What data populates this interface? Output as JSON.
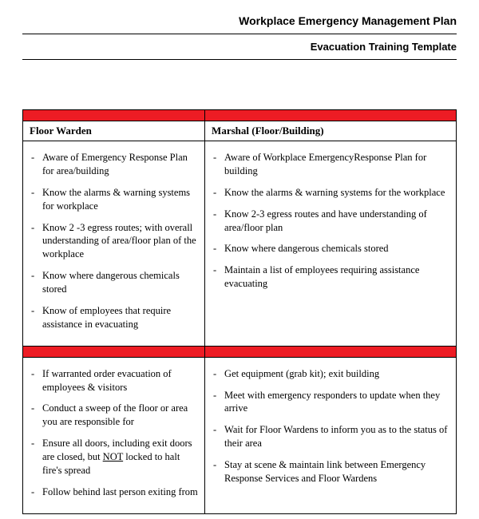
{
  "header": {
    "main_title": "Workplace Emergency Management Plan",
    "sub_title": "Evacuation Training Template"
  },
  "table": {
    "colors": {
      "band": "#ed1c24",
      "border": "#000000",
      "background": "#ffffff",
      "text": "#000000"
    },
    "columns": {
      "left_header": "Floor Warden",
      "right_header": "Marshal (Floor/Building)"
    },
    "section1": {
      "left": [
        "Aware of Emergency Response Plan for area/building",
        "Know the alarms & warning systems for workplace",
        "Know 2 -3 egress routes; with overall understanding of area/floor plan of the workplace",
        "Know where dangerous chemicals stored",
        "Know of employees that require assistance in evacuating"
      ],
      "right": [
        "Aware of Workplace EmergencyResponse Plan for building",
        "Know the alarms & warning systems for the workplace",
        "Know 2-3 egress routes and have understanding of area/floor plan",
        "Know where dangerous chemicals stored",
        "Maintain a list of employees requiring assistance evacuating"
      ]
    },
    "section2": {
      "left": [
        "If warranted order evacuation of employees & visitors",
        "Conduct a sweep of the floor or area you are responsible for",
        "Ensure all doors, including exit doors are closed, but NOT locked to halt fire's spread",
        "Follow behind last person exiting from"
      ],
      "right": [
        "Get equipment (grab kit); exit building",
        "Meet with emergency responders to update when they arrive",
        "Wait for Floor Wardens to inform you as to the status of their area",
        "Stay at scene & maintain link between Emergency Response Services and Floor Wardens"
      ]
    }
  }
}
